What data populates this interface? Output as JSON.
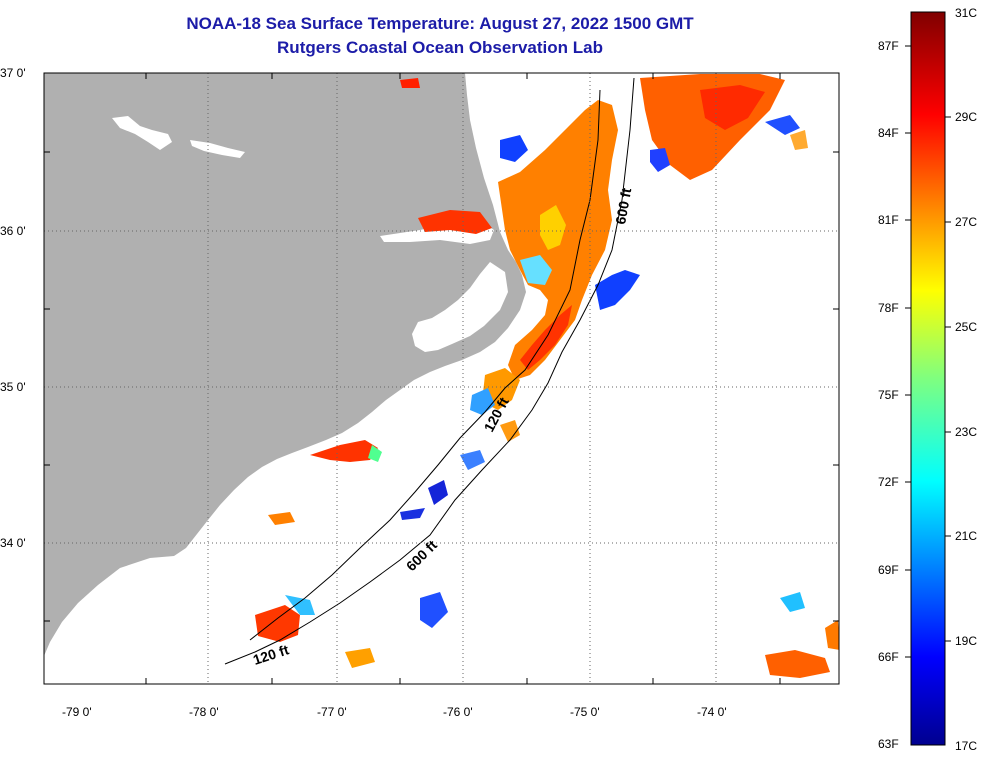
{
  "header": {
    "title": "NOAA-18 Sea Surface Temperature:  August 27, 2022 1500 GMT",
    "subtitle": "Rutgers Coastal Ocean Observation Lab"
  },
  "map": {
    "lat_labels": [
      {
        "value": 37,
        "label": "37 0'"
      },
      {
        "value": 36,
        "label": "36 0'"
      },
      {
        "value": 35,
        "label": "35 0'"
      },
      {
        "value": 34,
        "label": "34 0'"
      }
    ],
    "lon_labels": [
      {
        "value": -79,
        "label": "-79 0'"
      },
      {
        "value": -78,
        "label": "-78 0'"
      },
      {
        "value": -77,
        "label": "-77 0'"
      },
      {
        "value": -76,
        "label": "-76 0'"
      },
      {
        "value": -75,
        "label": "-75 0'"
      },
      {
        "value": -74,
        "label": "-74 0'"
      }
    ],
    "isobath_labels": [
      "600 ft",
      "120 ft",
      "600 ft",
      "120 ft"
    ],
    "colors": {
      "land": "#b0b0b0",
      "ocean": "#ffffff",
      "grid": "#555555"
    }
  },
  "colorbar": {
    "fahrenheit": [
      "87F",
      "84F",
      "81F",
      "78F",
      "75F",
      "72F",
      "69F",
      "66F",
      "63F"
    ],
    "celsius": [
      "31C",
      "29C",
      "27C",
      "25C",
      "23C",
      "21C",
      "19C",
      "17C"
    ]
  }
}
